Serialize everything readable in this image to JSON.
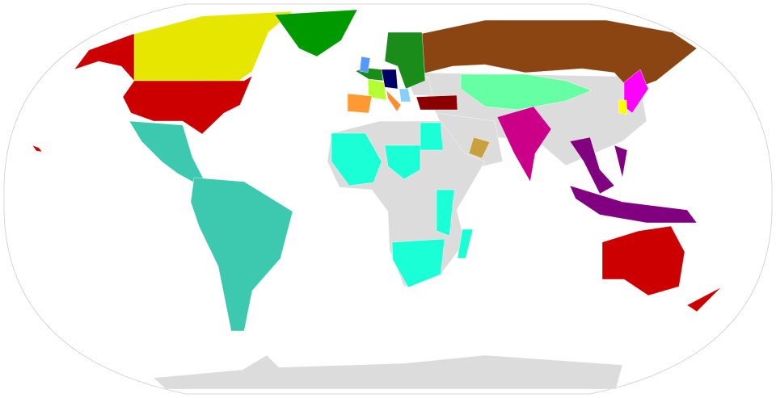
{
  "map": {
    "projection": "robinson",
    "background": "#ffffff",
    "outline_color": "#cccccc",
    "fills": {
      "unshaded": "#dcdcdc",
      "alaska": "#cc0000",
      "canada": "#e6e600",
      "usa": "#cc0000",
      "hawaii": "#cc0000",
      "greenland": "#009900",
      "latin-america": "#3cc9b0",
      "russia": "#8b4513",
      "central-asia": "#66ffa3",
      "india": "#cc0088",
      "southeast-asia": "#800080",
      "australia": "#cc0000",
      "new-zealand": "#cc0000",
      "japan": "#ff00ff",
      "korea": "#ffff00",
      "africa-cyan": "#1affd5",
      "germany": "#000066",
      "france": "#b3ff33",
      "spain": "#ff9933",
      "italy": "#ff8c33",
      "uk": "#5599ff",
      "europe-green": "#1a8c1a",
      "turkey": "#8b0000",
      "gulf": "#c8a040",
      "baltic-light": "#87cefa"
    }
  }
}
